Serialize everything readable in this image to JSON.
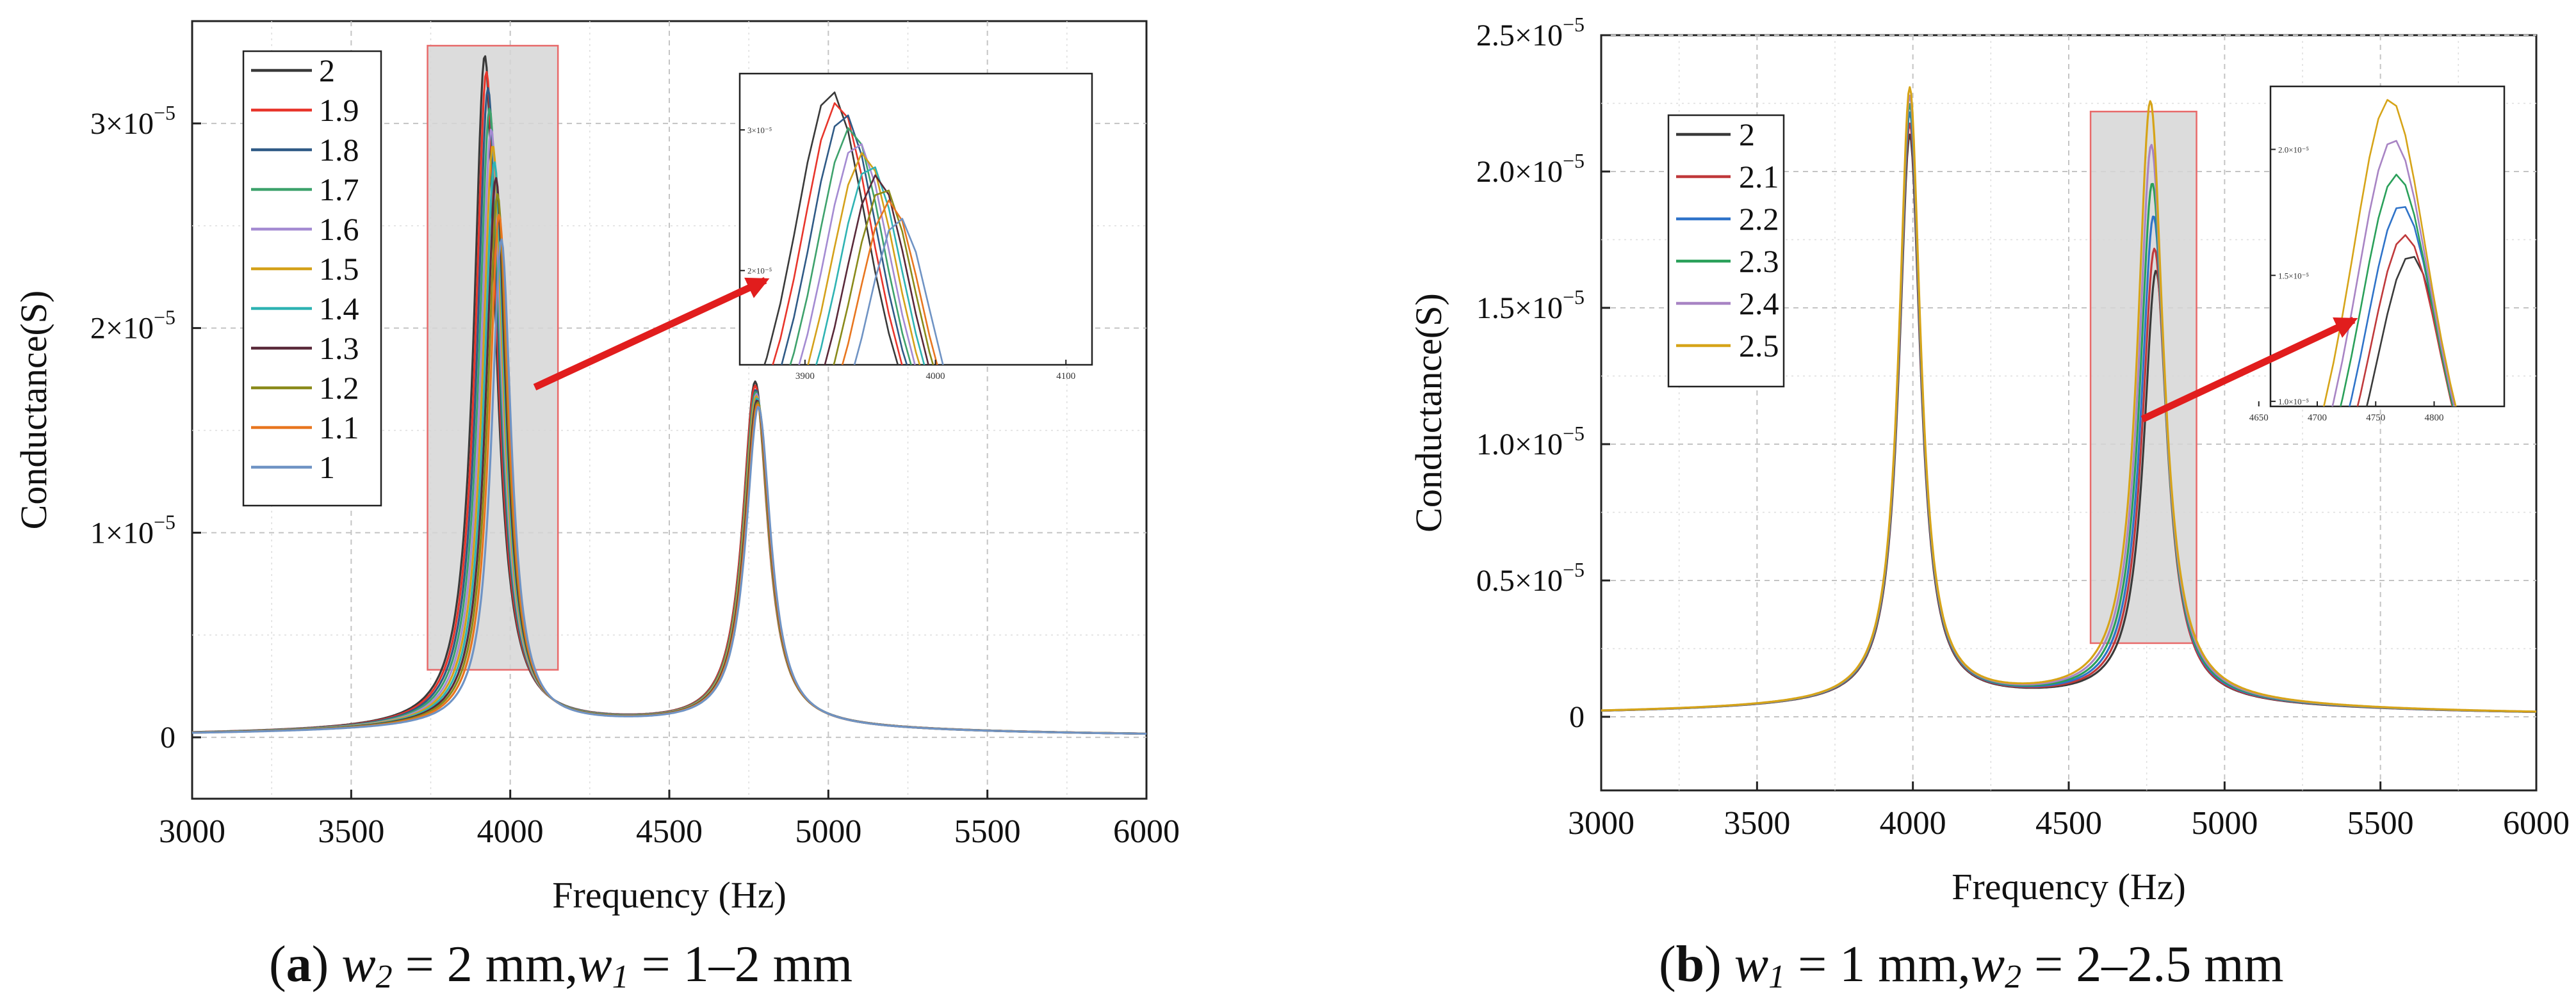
{
  "chart_data": [
    {
      "type": "line",
      "panel": "a",
      "xlabel": "Frequency (Hz)",
      "ylabel": "Conductance(S)",
      "xlim": [
        3000,
        6000
      ],
      "ylim": [
        -3e-06,
        3.5e-05
      ],
      "xticks": [
        "3000",
        "3500",
        "4000",
        "4500",
        "5000",
        "5500",
        "6000"
      ],
      "yticks": [
        {
          "value": 0,
          "base": "0",
          "exp": ""
        },
        {
          "value": 1e-05,
          "base": "1×10",
          "exp": "−5"
        },
        {
          "value": 2e-05,
          "base": "2×10",
          "exp": "−5"
        },
        {
          "value": 3e-05,
          "base": "3×10",
          "exp": "−5"
        }
      ],
      "grid": true,
      "legend_position": "top-left",
      "highlight_region": {
        "x": [
          3740,
          4150
        ],
        "y": [
          3.3e-06,
          3.38e-05
        ]
      },
      "inset": {
        "xlim": [
          3850,
          4120
        ],
        "ylim": [
          1.33e-05,
          3.4e-05
        ],
        "xticks": [
          "3900",
          "4000",
          "4100"
        ],
        "yticks": [
          {
            "value": 2e-05,
            "label": "2×10⁻⁵"
          },
          {
            "value": 3e-05,
            "label": "3×10⁻⁵"
          }
        ]
      },
      "series": [
        {
          "name": "2",
          "color": "#3a3a3a",
          "peak1_f": 3920,
          "peak1_g": 3.28e-05,
          "peak2_f": 4770,
          "peak2_g": 1.68e-05
        },
        {
          "name": "1.9",
          "color": "#e8352b",
          "peak1_f": 3925,
          "peak1_g": 3.2e-05,
          "peak2_f": 4770,
          "peak2_g": 1.66e-05
        },
        {
          "name": "1.8",
          "color": "#2f5a86",
          "peak1_f": 3930,
          "peak1_g": 3.12e-05,
          "peak2_f": 4772,
          "peak2_g": 1.64e-05
        },
        {
          "name": "1.7",
          "color": "#3ea26c",
          "peak1_f": 3935,
          "peak1_g": 3.02e-05,
          "peak2_f": 4772,
          "peak2_g": 1.63e-05
        },
        {
          "name": "1.6",
          "color": "#a48bd2",
          "peak1_f": 3940,
          "peak1_g": 2.92e-05,
          "peak2_f": 4774,
          "peak2_g": 1.62e-05
        },
        {
          "name": "1.5",
          "color": "#d4a11a",
          "peak1_f": 3945,
          "peak1_g": 2.84e-05,
          "peak2_f": 4774,
          "peak2_g": 1.61e-05
        },
        {
          "name": "1.4",
          "color": "#2fb3b3",
          "peak1_f": 3950,
          "peak1_g": 2.76e-05,
          "peak2_f": 4776,
          "peak2_g": 1.6e-05
        },
        {
          "name": "1.3",
          "color": "#5a2a3a",
          "peak1_f": 3955,
          "peak1_g": 2.68e-05,
          "peak2_f": 4776,
          "peak2_g": 1.59e-05
        },
        {
          "name": "1.2",
          "color": "#8a8a1a",
          "peak1_f": 3960,
          "peak1_g": 2.6e-05,
          "peak2_f": 4778,
          "peak2_g": 1.58e-05
        },
        {
          "name": "1.1",
          "color": "#e8761f",
          "peak1_f": 3965,
          "peak1_g": 2.5e-05,
          "peak2_f": 4778,
          "peak2_g": 1.57e-05
        },
        {
          "name": "1",
          "color": "#6f93c4",
          "peak1_f": 3972,
          "peak1_g": 2.38e-05,
          "peak2_f": 4780,
          "peak2_g": 1.56e-05
        }
      ]
    },
    {
      "type": "line",
      "panel": "b",
      "xlabel": "Frequency (Hz)",
      "ylabel": "Conductance(S)",
      "xlim": [
        3000,
        6000
      ],
      "ylim": [
        -2.7e-06,
        2.5e-05
      ],
      "xticks": [
        "3000",
        "3500",
        "4000",
        "4500",
        "5000",
        "5500",
        "6000"
      ],
      "yticks": [
        {
          "value": 0,
          "base": "0",
          "exp": ""
        },
        {
          "value": 5e-06,
          "base": "0.5×10",
          "exp": "−5"
        },
        {
          "value": 1e-05,
          "base": "1.0×10",
          "exp": "−5"
        },
        {
          "value": 1.5e-05,
          "base": "1.5×10",
          "exp": "−5"
        },
        {
          "value": 2e-05,
          "base": "2.0×10",
          "exp": "−5"
        },
        {
          "value": 2.5e-05,
          "base": "2.5×10",
          "exp": "−5"
        }
      ],
      "grid": true,
      "legend_position": "top-left",
      "highlight_region": {
        "x": [
          4570,
          4910
        ],
        "y": [
          2.7e-06,
          2.22e-05
        ]
      },
      "inset": {
        "xlim": [
          4660,
          4860
        ],
        "ylim": [
          9.8e-06,
          2.25e-05
        ],
        "xticks": [
          "4650",
          "4700",
          "4750",
          "4800"
        ],
        "yticks": [
          {
            "value": 1e-05,
            "label": "1.0×10⁻⁵"
          },
          {
            "value": 1.5e-05,
            "label": "1.5×10⁻⁵"
          },
          {
            "value": 2e-05,
            "label": "2.0×10⁻⁵"
          }
        ]
      },
      "series": [
        {
          "name": "2",
          "color": "#3a3a3a",
          "peak1_f": 3990,
          "peak1_g": 2.08e-05,
          "peak2_f": 4780,
          "peak2_g": 1.58e-05
        },
        {
          "name": "2.1",
          "color": "#c0393b",
          "peak1_f": 3990,
          "peak1_g": 2.12e-05,
          "peak2_f": 4775,
          "peak2_g": 1.66e-05
        },
        {
          "name": "2.2",
          "color": "#2f73c9",
          "peak1_f": 3990,
          "peak1_g": 2.16e-05,
          "peak2_f": 4772,
          "peak2_g": 1.78e-05
        },
        {
          "name": "2.3",
          "color": "#2aa05a",
          "peak1_f": 3990,
          "peak1_g": 2.19e-05,
          "peak2_f": 4768,
          "peak2_g": 1.9e-05
        },
        {
          "name": "2.4",
          "color": "#a884c4",
          "peak1_f": 3990,
          "peak1_g": 2.22e-05,
          "peak2_f": 4765,
          "peak2_g": 2.04e-05
        },
        {
          "name": "2.5",
          "color": "#d6a418",
          "peak1_f": 3990,
          "peak1_g": 2.25e-05,
          "peak2_f": 4762,
          "peak2_g": 2.2e-05
        }
      ]
    }
  ],
  "captions": [
    {
      "letter": "a",
      "v1": "w",
      "s1": "2",
      "t1": " = 2 mm,",
      "v2": "w",
      "s2": "1",
      "t2": " = 1–2 mm"
    },
    {
      "letter": "b",
      "v1": "w",
      "s1": "1",
      "t1": " = 1 mm,",
      "v2": "w",
      "s2": "2",
      "t2": " = 2–2.5 mm"
    }
  ]
}
